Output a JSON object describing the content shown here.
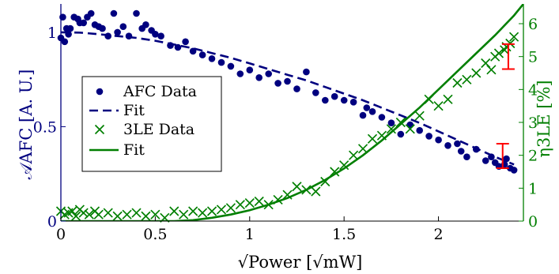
{
  "chart_data": {
    "type": "scatter",
    "xlabel": "√Power [√mW]",
    "xlim": [
      0,
      2.45
    ],
    "xticks": [
      0,
      0.5,
      1,
      1.5,
      2
    ],
    "xtick_labels": [
      "0",
      "0.5",
      "1",
      "1.5",
      "2"
    ],
    "ylabel_left": "𝒜AFC [A. U.]",
    "ylim_left": [
      0,
      1.15
    ],
    "yticks_left": [
      0,
      0.5,
      1
    ],
    "ytick_labels_left": [
      "0",
      "0.5",
      "1"
    ],
    "ylabel_right": "η3LE [%]",
    "ylim_right": [
      0,
      6.6
    ],
    "yticks_right": [
      0,
      1,
      2,
      3,
      4,
      5,
      6
    ],
    "ytick_labels_right": [
      "0",
      "1",
      "2",
      "3",
      "4",
      "5",
      "6"
    ],
    "colors": {
      "afc": "#00007f",
      "le": "#007f00",
      "error_bar": "#ff0000"
    },
    "legend": {
      "placement": "center-left",
      "entries": [
        "AFC Data",
        "Fit",
        "3LE Data",
        "Fit"
      ]
    },
    "series": [
      {
        "name": "AFC Data",
        "axis": "left",
        "marker": "dot",
        "x": [
          0.0,
          0.01,
          0.02,
          0.03,
          0.04,
          0.05,
          0.07,
          0.09,
          0.1,
          0.12,
          0.14,
          0.16,
          0.18,
          0.2,
          0.22,
          0.25,
          0.28,
          0.3,
          0.33,
          0.36,
          0.4,
          0.43,
          0.45,
          0.48,
          0.5,
          0.53,
          0.58,
          0.62,
          0.66,
          0.7,
          0.75,
          0.8,
          0.85,
          0.9,
          0.95,
          1.0,
          1.05,
          1.1,
          1.15,
          1.2,
          1.25,
          1.3,
          1.35,
          1.4,
          1.45,
          1.5,
          1.55,
          1.6,
          1.62,
          1.65,
          1.7,
          1.75,
          1.8,
          1.85,
          1.9,
          1.95,
          2.0,
          2.05,
          2.1,
          2.12,
          2.15,
          2.2,
          2.25,
          2.28,
          2.3,
          2.32,
          2.35,
          2.36,
          2.38,
          2.4
        ],
        "y": [
          0.97,
          1.08,
          0.95,
          1.02,
          0.99,
          1.02,
          1.08,
          1.07,
          1.05,
          1.05,
          1.08,
          1.1,
          1.04,
          1.03,
          1.02,
          0.98,
          1.1,
          1.0,
          1.03,
          0.98,
          1.1,
          1.02,
          1.04,
          1.01,
          0.99,
          0.98,
          0.93,
          0.92,
          0.95,
          0.9,
          0.88,
          0.86,
          0.84,
          0.82,
          0.78,
          0.8,
          0.76,
          0.78,
          0.73,
          0.74,
          0.7,
          0.79,
          0.68,
          0.64,
          0.66,
          0.64,
          0.63,
          0.56,
          0.6,
          0.58,
          0.55,
          0.52,
          0.46,
          0.51,
          0.48,
          0.45,
          0.43,
          0.4,
          0.41,
          0.37,
          0.34,
          0.38,
          0.32,
          0.34,
          0.31,
          0.29,
          0.3,
          0.33,
          0.28,
          0.27
        ]
      },
      {
        "name": "Fit",
        "axis": "left",
        "style": "dashed",
        "x": [
          0.0,
          0.1,
          0.2,
          0.3,
          0.4,
          0.5,
          0.6,
          0.7,
          0.8,
          0.9,
          1.0,
          1.1,
          1.2,
          1.3,
          1.4,
          1.5,
          1.6,
          1.7,
          1.8,
          1.9,
          2.0,
          2.1,
          2.2,
          2.3,
          2.4
        ],
        "y": [
          1.0,
          0.998,
          0.99,
          0.98,
          0.97,
          0.955,
          0.935,
          0.915,
          0.89,
          0.865,
          0.835,
          0.805,
          0.775,
          0.745,
          0.71,
          0.675,
          0.64,
          0.6,
          0.56,
          0.52,
          0.475,
          0.43,
          0.385,
          0.34,
          0.3
        ]
      },
      {
        "name": "3LE Data",
        "axis": "right",
        "marker": "x",
        "x": [
          0.0,
          0.02,
          0.04,
          0.06,
          0.08,
          0.1,
          0.12,
          0.15,
          0.18,
          0.2,
          0.25,
          0.3,
          0.35,
          0.4,
          0.45,
          0.5,
          0.55,
          0.6,
          0.65,
          0.7,
          0.75,
          0.8,
          0.85,
          0.9,
          0.95,
          1.0,
          1.05,
          1.1,
          1.15,
          1.2,
          1.25,
          1.3,
          1.35,
          1.4,
          1.45,
          1.5,
          1.55,
          1.6,
          1.65,
          1.7,
          1.75,
          1.8,
          1.85,
          1.9,
          1.95,
          2.0,
          2.05,
          2.1,
          2.15,
          2.2,
          2.25,
          2.28,
          2.3,
          2.32,
          2.35,
          2.36,
          2.38,
          2.4
        ],
        "y": [
          0.3,
          0.2,
          0.25,
          0.3,
          0.15,
          0.35,
          0.25,
          0.2,
          0.3,
          0.2,
          0.25,
          0.15,
          0.2,
          0.25,
          0.15,
          0.2,
          0.1,
          0.3,
          0.2,
          0.3,
          0.25,
          0.3,
          0.35,
          0.4,
          0.5,
          0.55,
          0.6,
          0.5,
          0.65,
          0.8,
          1.05,
          0.95,
          0.9,
          1.2,
          1.5,
          1.7,
          2.0,
          2.2,
          2.5,
          2.6,
          2.8,
          3.0,
          2.8,
          3.2,
          3.7,
          3.5,
          3.7,
          4.2,
          4.3,
          4.5,
          4.8,
          4.6,
          5.0,
          5.1,
          5.2,
          5.3,
          5.4,
          5.6
        ]
      },
      {
        "name": "Fit",
        "axis": "right",
        "style": "solid",
        "x": [
          0.0,
          0.1,
          0.2,
          0.3,
          0.4,
          0.5,
          0.6,
          0.7,
          0.8,
          0.9,
          1.0,
          1.1,
          1.2,
          1.3,
          1.4,
          1.5,
          1.6,
          1.7,
          1.8,
          1.9,
          2.0,
          2.1,
          2.2,
          2.3,
          2.4,
          2.45
        ],
        "y": [
          0.0,
          0.0,
          0.0,
          0.0,
          0.0,
          0.0,
          0.0,
          0.03,
          0.1,
          0.2,
          0.33,
          0.5,
          0.7,
          0.95,
          1.25,
          1.6,
          2.0,
          2.45,
          2.95,
          3.45,
          4.0,
          4.55,
          5.1,
          5.65,
          6.25,
          6.6
        ]
      }
    ],
    "error_bars": [
      {
        "axis": "left",
        "x": 2.34,
        "y": 0.345,
        "err": 0.065
      },
      {
        "axis": "right",
        "x": 2.37,
        "y": 5.0,
        "err": 0.38
      }
    ]
  }
}
